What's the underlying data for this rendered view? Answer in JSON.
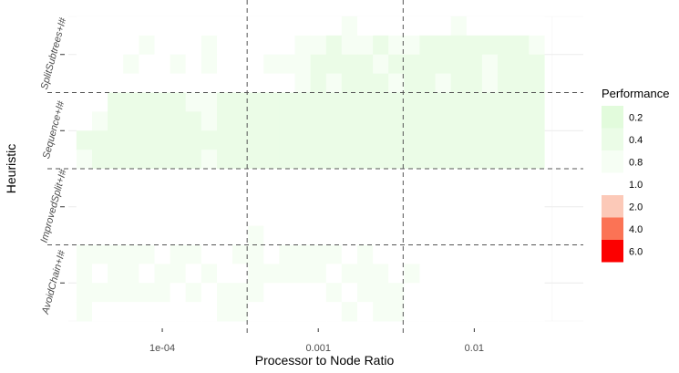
{
  "chart_data": {
    "type": "heatmap",
    "title": "",
    "xlabel": "Processor to Node Ratio",
    "ylabel": "Heuristic",
    "x_scale": "log10",
    "xlim": [
      2.5e-05,
      0.05
    ],
    "x_ticks": [
      {
        "value": 0.0001,
        "label": "1e-04"
      },
      {
        "value": 0.001,
        "label": "0.001"
      },
      {
        "value": 0.01,
        "label": "0.01"
      }
    ],
    "x_group_boundaries": [
      0.00035,
      0.0035
    ],
    "rows_per_group": 4,
    "grid": true,
    "legend": {
      "title": "Performance",
      "position": "right",
      "entries": [
        {
          "label": "0.2",
          "color": "#e2fbdc"
        },
        {
          "label": "0.4",
          "color": "#ebfce7"
        },
        {
          "label": "0.8",
          "color": "#f6fef4"
        },
        {
          "label": "1.0",
          "color": "#ffffff"
        },
        {
          "label": "2.0",
          "color": "#fcc9b8"
        },
        {
          "label": "4.0",
          "color": "#fb7355"
        },
        {
          "label": "6.0",
          "color": "#fc0000"
        }
      ]
    },
    "x_columns": [
      3.16e-05,
      3.98e-05,
      5.01e-05,
      6.31e-05,
      7.94e-05,
      0.0001,
      0.000126,
      0.000158,
      0.0002,
      0.000251,
      0.000316,
      0.000398,
      0.000501,
      0.000631,
      0.000794,
      0.001,
      0.00126,
      0.00158,
      0.002,
      0.00251,
      0.00316,
      0.00398,
      0.00501,
      0.00631,
      0.00794,
      0.01,
      0.0126,
      0.0158,
      0.02,
      0.0251
    ],
    "series": [
      {
        "name": "SplitSubtrees+I#",
        "rows": [
          [
            1,
            1,
            1,
            1,
            1,
            1,
            1,
            1,
            1,
            1,
            1,
            1,
            1,
            1,
            1,
            1,
            1,
            0.8,
            1,
            1,
            1,
            1,
            1,
            1,
            0.8,
            1,
            1,
            1,
            1,
            1
          ],
          [
            1,
            1,
            1,
            1,
            0.8,
            1,
            1,
            1,
            0.8,
            1,
            1,
            1,
            1,
            1,
            0.8,
            0.8,
            0.4,
            0.8,
            0.8,
            0.4,
            0.8,
            0.8,
            0.4,
            0.4,
            0.4,
            0.4,
            0.4,
            0.4,
            0.4,
            0.8
          ],
          [
            1,
            1,
            1,
            0.8,
            1,
            1,
            0.8,
            1,
            0.8,
            1,
            1,
            1,
            0.8,
            0.8,
            0.8,
            0.4,
            0.4,
            0.4,
            0.4,
            0.8,
            0.4,
            0.4,
            0.4,
            0.4,
            0.4,
            0.4,
            0.8,
            0.4,
            0.4,
            0.4
          ],
          [
            1,
            1,
            1,
            1,
            1,
            1,
            1,
            1,
            1,
            1,
            1,
            1,
            1,
            1,
            0.8,
            0.4,
            0.8,
            0.4,
            0.4,
            0.4,
            0.8,
            0.4,
            0.4,
            0.8,
            0.4,
            0.4,
            0.8,
            0.4,
            0.4,
            0.4
          ]
        ]
      },
      {
        "name": "Sequence+I#",
        "rows": [
          [
            1,
            1,
            0.4,
            0.4,
            0.4,
            0.4,
            0.4,
            0.8,
            0.8,
            0.4,
            0.4,
            0.4,
            0.4,
            0.4,
            0.4,
            0.4,
            0.4,
            0.4,
            0.4,
            0.4,
            0.4,
            0.4,
            0.4,
            0.4,
            0.4,
            0.4,
            0.4,
            0.4,
            0.4,
            0.4
          ],
          [
            1,
            0.8,
            0.4,
            0.4,
            0.4,
            0.4,
            0.4,
            0.4,
            0.8,
            0.4,
            0.4,
            0.4,
            0.4,
            0.4,
            0.4,
            0.4,
            0.4,
            0.4,
            0.4,
            0.4,
            0.4,
            0.4,
            0.4,
            0.4,
            0.4,
            0.4,
            0.4,
            0.4,
            0.4,
            0.4
          ],
          [
            0.4,
            0.4,
            0.4,
            0.4,
            0.4,
            0.4,
            0.4,
            0.4,
            0.4,
            0.4,
            0.4,
            0.4,
            0.4,
            0.4,
            0.4,
            0.4,
            0.4,
            0.4,
            0.4,
            0.4,
            0.4,
            0.4,
            0.4,
            0.4,
            0.4,
            0.4,
            0.4,
            0.4,
            0.4,
            0.4
          ],
          [
            0.8,
            0.4,
            0.4,
            0.4,
            0.4,
            0.4,
            0.4,
            0.4,
            0.8,
            0.4,
            0.4,
            0.4,
            0.4,
            0.4,
            0.4,
            0.4,
            0.4,
            0.4,
            0.4,
            0.4,
            0.4,
            0.4,
            0.4,
            0.4,
            0.4,
            0.4,
            0.4,
            0.4,
            0.4,
            0.4
          ]
        ]
      },
      {
        "name": "ImprovedSplit+I#",
        "rows": [
          [
            1,
            1,
            1,
            1,
            1,
            1,
            1,
            1,
            1,
            1,
            1,
            1,
            1,
            1,
            1,
            1,
            1,
            1,
            1,
            1,
            1,
            1,
            1,
            1,
            1,
            1,
            1,
            1,
            1,
            1
          ],
          [
            1,
            1,
            1,
            1,
            1,
            1,
            1,
            1,
            1,
            1,
            1,
            1,
            1,
            1,
            1,
            1,
            1,
            1,
            1,
            1,
            1,
            1,
            1,
            1,
            1,
            1,
            1,
            1,
            1,
            1
          ],
          [
            1,
            1,
            1,
            1,
            1,
            1,
            1,
            1,
            1,
            1,
            1,
            1,
            1,
            1,
            1,
            1,
            1,
            1,
            1,
            1,
            1,
            1,
            1,
            1,
            1,
            1,
            1,
            1,
            1,
            1
          ],
          [
            1,
            1,
            1,
            1,
            1,
            1,
            1,
            1,
            1,
            1,
            1,
            0.8,
            1,
            1,
            1,
            1,
            1,
            1,
            1,
            1,
            1,
            1,
            1,
            1,
            1,
            1,
            1,
            1,
            1,
            1
          ]
        ]
      },
      {
        "name": "AvoidChain+I#",
        "rows": [
          [
            0.8,
            0.8,
            0.8,
            0.8,
            0.8,
            1,
            0.8,
            0.8,
            1,
            1,
            0.8,
            0.8,
            1,
            0.8,
            0.8,
            0.8,
            0.8,
            1,
            0.8,
            1,
            1,
            1,
            1,
            1,
            1,
            1,
            1,
            1,
            1,
            1
          ],
          [
            0.8,
            1,
            0.8,
            0.8,
            1,
            0.8,
            0.8,
            1,
            0.8,
            1,
            1,
            0.8,
            0.8,
            0.8,
            0.8,
            0.8,
            1,
            0.8,
            0.8,
            0.8,
            1,
            0.8,
            1,
            1,
            1,
            1,
            1,
            1,
            1,
            1
          ],
          [
            0.8,
            0.8,
            0.8,
            0.8,
            0.8,
            0.8,
            1,
            0.8,
            1,
            0.8,
            0.8,
            0.8,
            1,
            1,
            1,
            1,
            0.8,
            1,
            0.8,
            0.8,
            0.8,
            1,
            1,
            1,
            1,
            1,
            1,
            1,
            1,
            1
          ],
          [
            0.8,
            1,
            1,
            1,
            1,
            1,
            1,
            1,
            1,
            0.8,
            0.8,
            1,
            1,
            1,
            1,
            1,
            1,
            0.8,
            1,
            0.8,
            0.8,
            1,
            1,
            1,
            1,
            1,
            1,
            1,
            1,
            1
          ]
        ]
      }
    ]
  }
}
